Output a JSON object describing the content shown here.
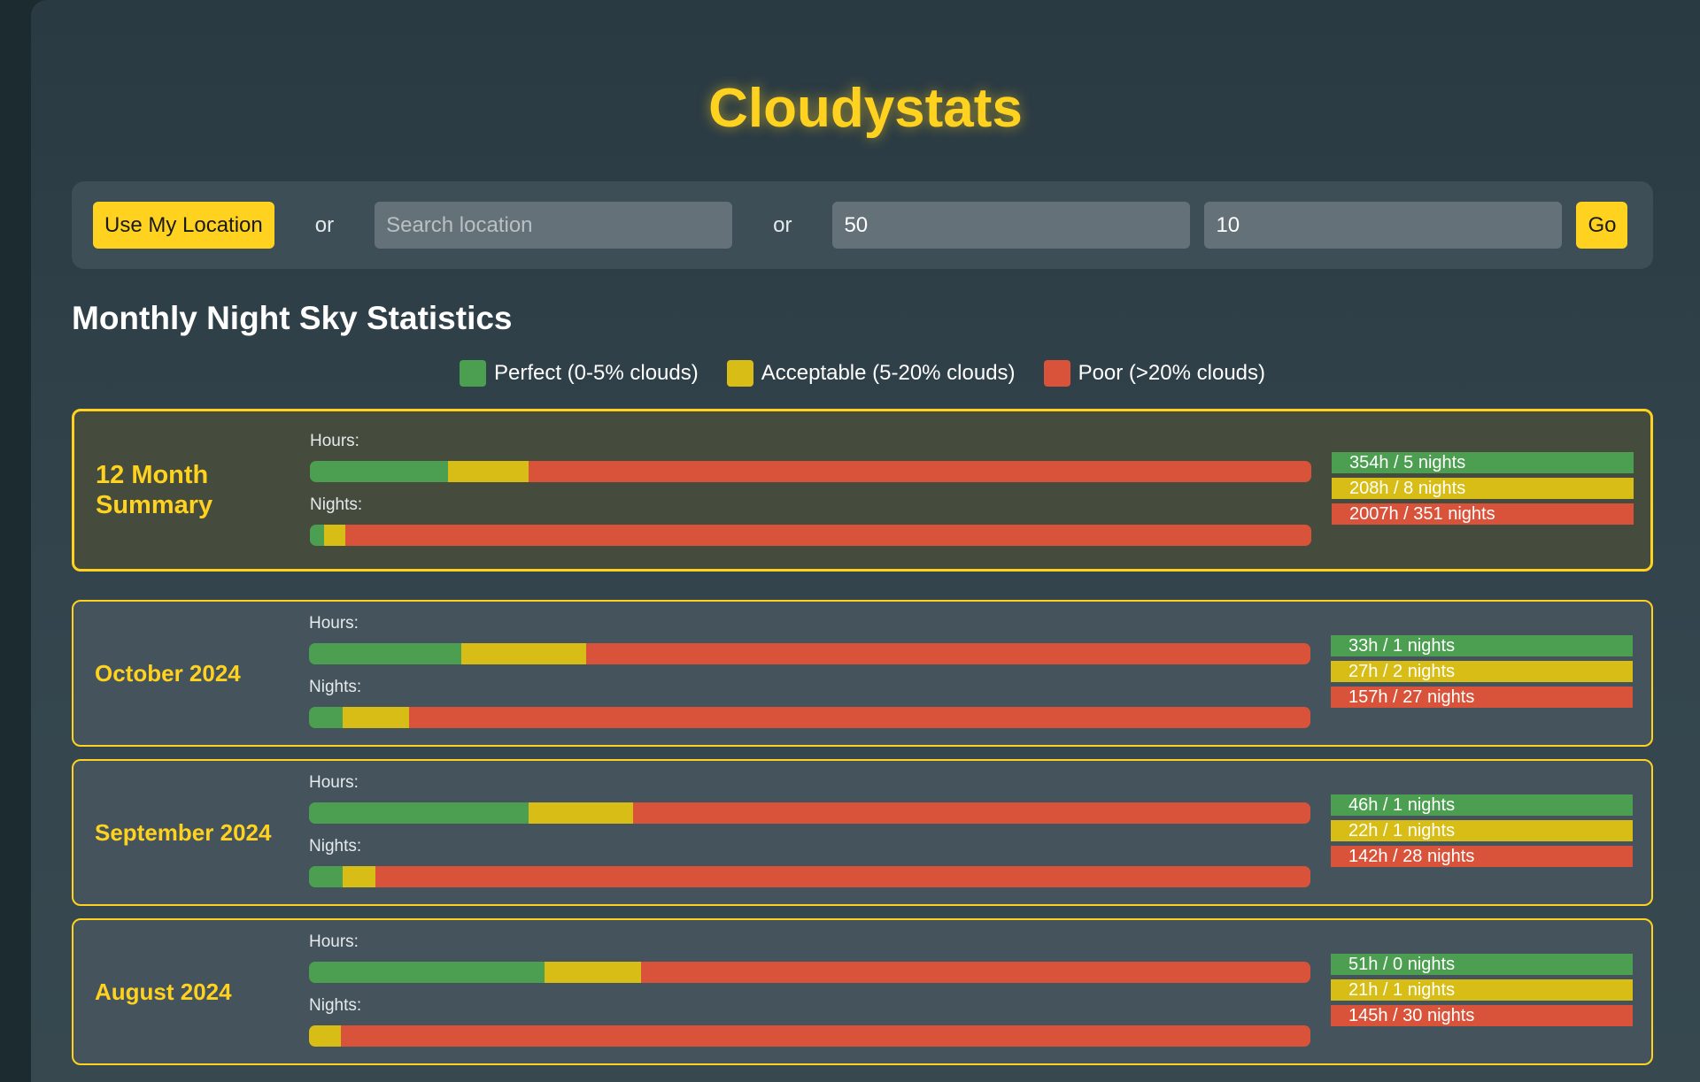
{
  "app": {
    "title": "Cloudystats"
  },
  "colors": {
    "perfect": "#4c9f50",
    "acceptable": "#d7bd16",
    "poor": "#d9533a",
    "accent": "#ffd21f"
  },
  "toolbar": {
    "location_button": "Use My Location",
    "or1": "or",
    "search_placeholder": "Search location",
    "or2": "or",
    "lat_value": "50",
    "lon_value": "10",
    "go_button": "Go"
  },
  "section": {
    "title": "Monthly Night Sky Statistics"
  },
  "legend": [
    {
      "label": "Perfect (0-5% clouds)",
      "key": "perfect"
    },
    {
      "label": "Acceptable (5-20% clouds)",
      "key": "acceptable"
    },
    {
      "label": "Poor (>20% clouds)",
      "key": "poor"
    }
  ],
  "cards": [
    {
      "label": "12 Month Summary",
      "hours_label": "Hours:",
      "nights_label": "Nights:",
      "hours": {
        "perfect": 354,
        "acceptable": 208,
        "poor": 2007
      },
      "nights": {
        "perfect": 5,
        "acceptable": 8,
        "poor": 351
      },
      "stats": [
        "354h / 5 nights",
        "208h / 8 nights",
        "2007h / 351 nights"
      ]
    },
    {
      "label": "October 2024",
      "hours_label": "Hours:",
      "nights_label": "Nights:",
      "hours": {
        "perfect": 33,
        "acceptable": 27,
        "poor": 157
      },
      "nights": {
        "perfect": 1,
        "acceptable": 2,
        "poor": 27
      },
      "stats": [
        "33h / 1 nights",
        "27h / 2 nights",
        "157h / 27 nights"
      ]
    },
    {
      "label": "September 2024",
      "hours_label": "Hours:",
      "nights_label": "Nights:",
      "hours": {
        "perfect": 46,
        "acceptable": 22,
        "poor": 142
      },
      "nights": {
        "perfect": 1,
        "acceptable": 1,
        "poor": 28
      },
      "stats": [
        "46h / 1 nights",
        "22h / 1 nights",
        "142h / 28 nights"
      ]
    },
    {
      "label": "August 2024",
      "hours_label": "Hours:",
      "nights_label": "Nights:",
      "hours": {
        "perfect": 51,
        "acceptable": 21,
        "poor": 145
      },
      "nights": {
        "perfect": 0,
        "acceptable": 1,
        "poor": 30
      },
      "stats": [
        "51h / 0 nights",
        "21h / 1 nights",
        "145h / 30 nights"
      ]
    }
  ]
}
